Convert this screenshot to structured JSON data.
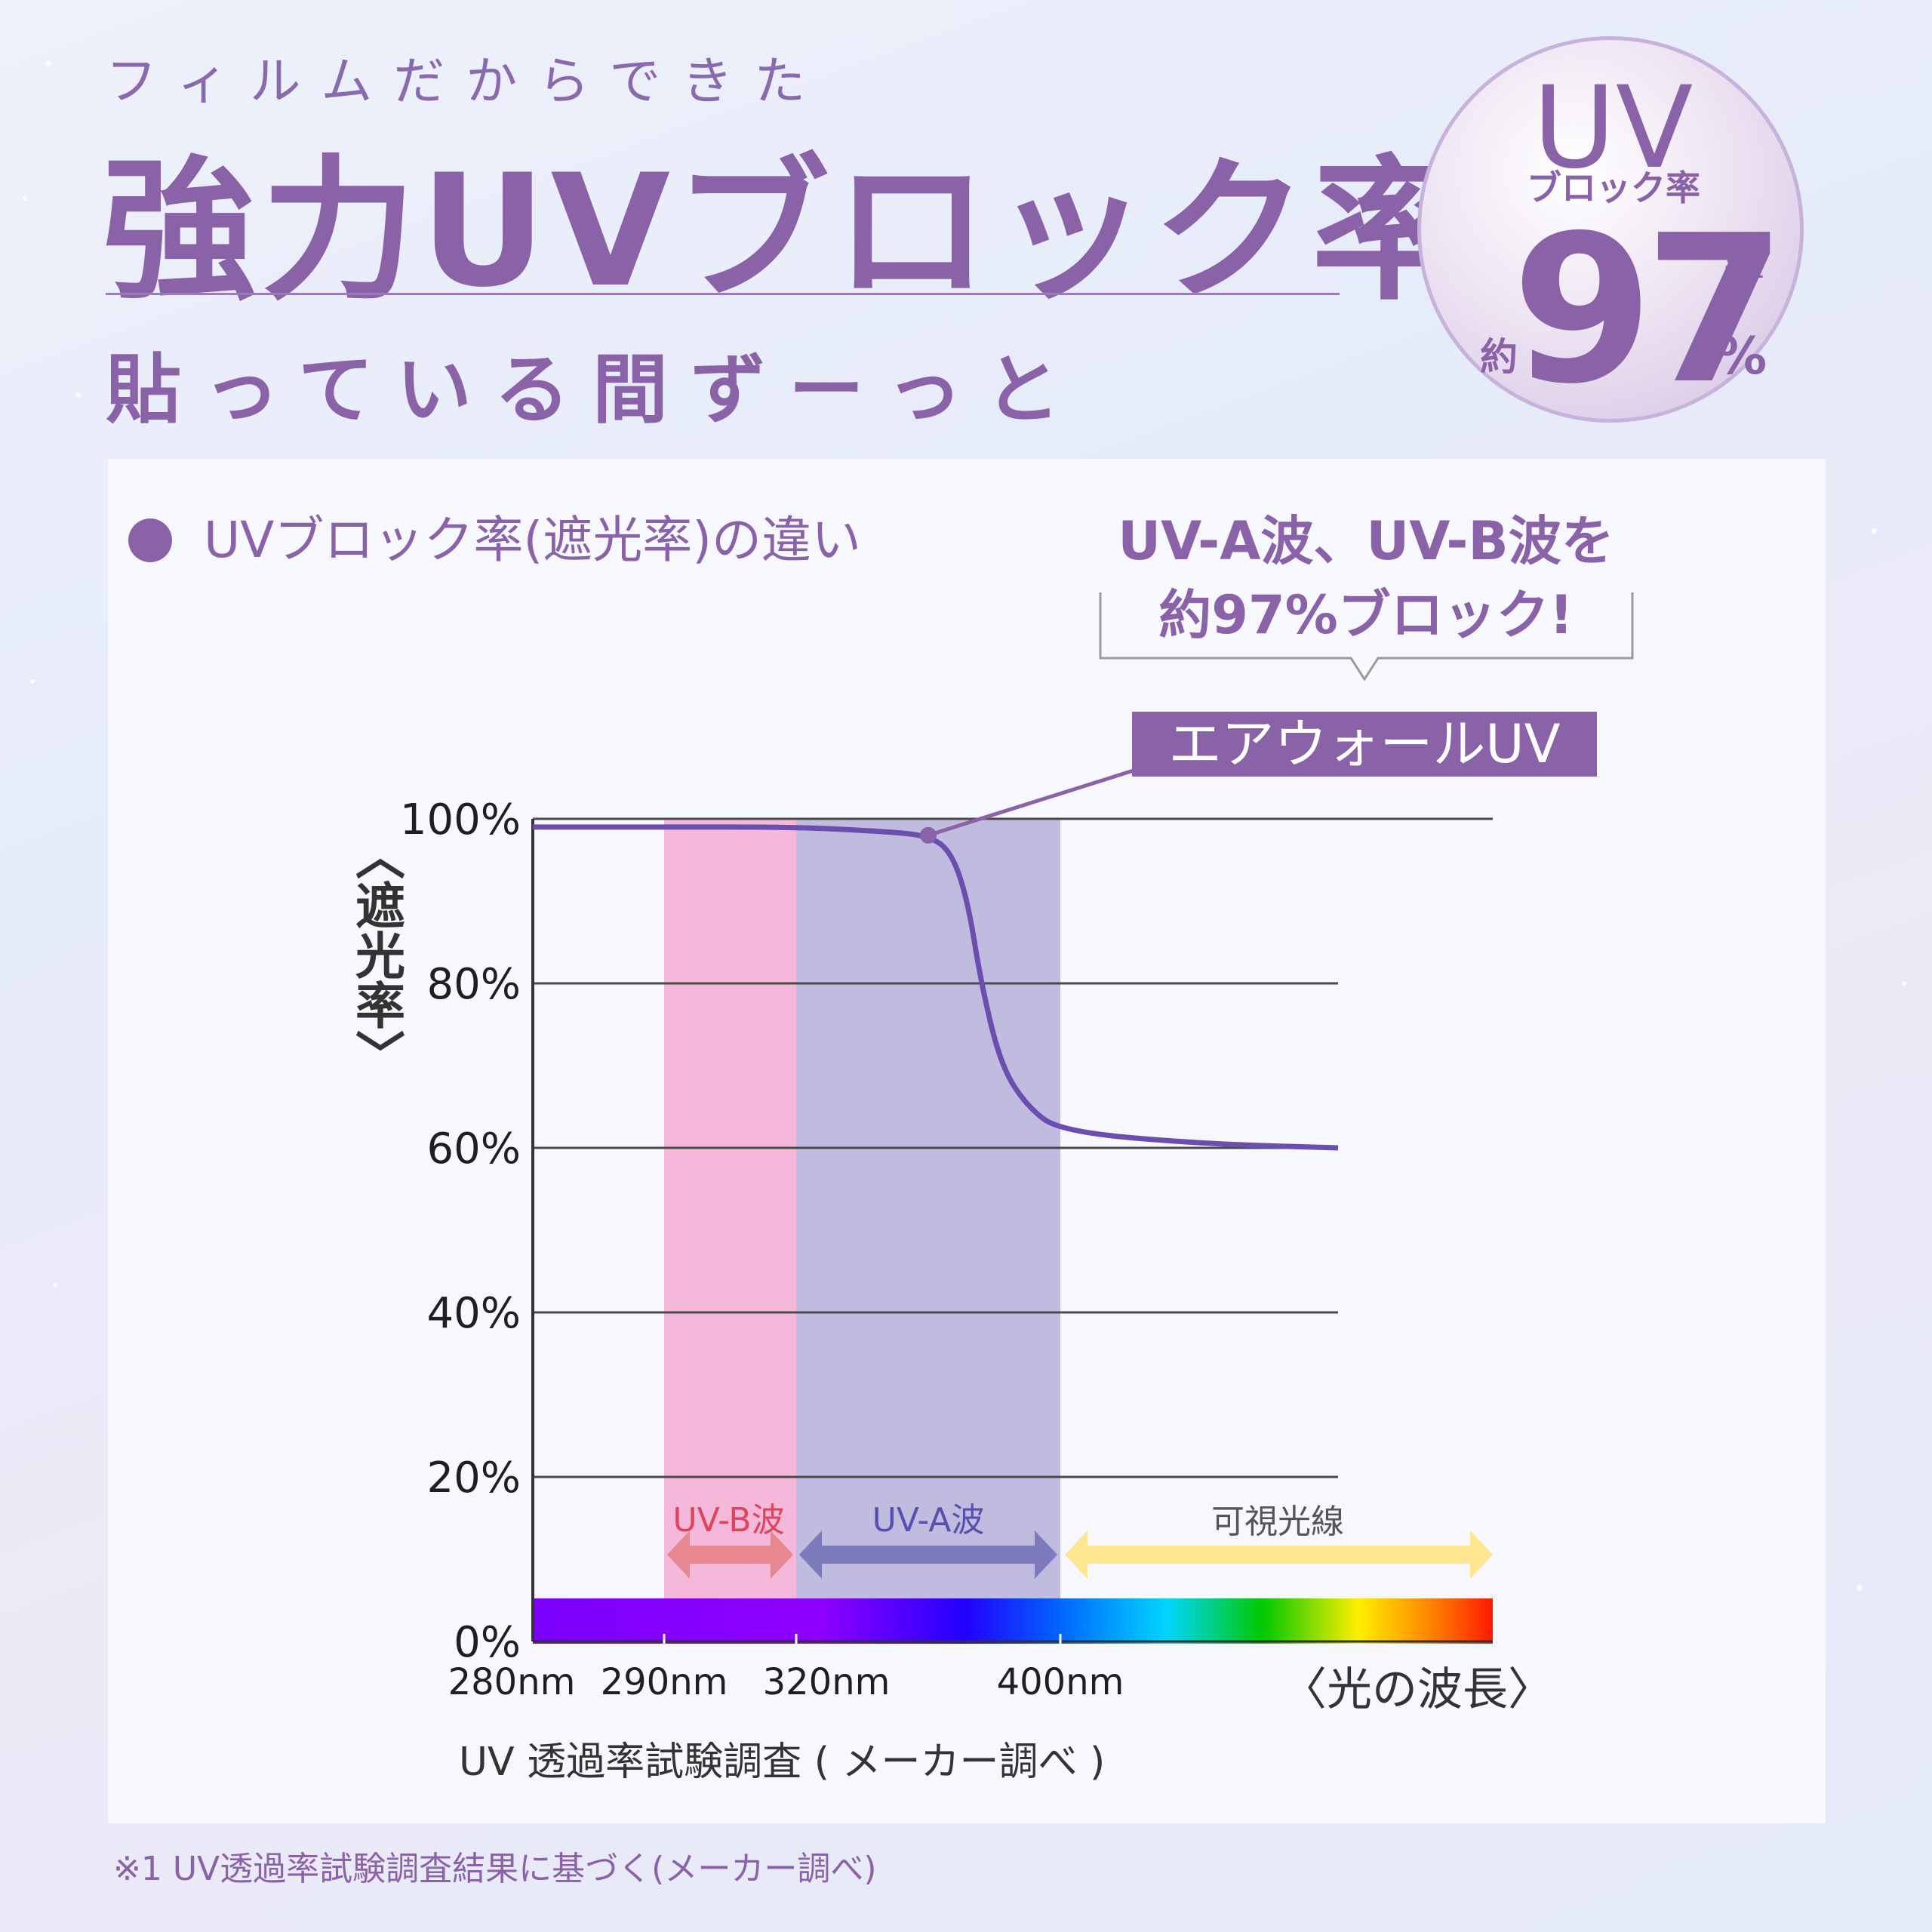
{
  "header": {
    "subtitle_top": "フィルムだからできた",
    "title": "強力UVブロック率",
    "subtitle_bottom": "貼っている間ずーっと"
  },
  "badge": {
    "uv": "UV",
    "block_label": "ブロック率",
    "approx": "約",
    "number": "97",
    "percent": "%",
    "note": "※1"
  },
  "chart_heading": "UVブロック率(遮光率)の違い",
  "callout": {
    "line1": "UV-A波、UV-B波を",
    "line2": "約97%ブロック!"
  },
  "product_label": "エアウォールUV",
  "bands": [
    {
      "label": "UV-B波",
      "color": "#f4b8db",
      "arrow_color": "#e8878e",
      "text_color": "#e0445a"
    },
    {
      "label": "UV-A波",
      "color": "#c0bcdf",
      "arrow_color": "#7e7bbd",
      "text_color": "#5a4fb0"
    },
    {
      "label": "可視光線",
      "color": "none",
      "arrow_color": "#fde68f",
      "text_color": "#555555"
    }
  ],
  "chart_data": {
    "type": "line",
    "title": "UVブロック率(遮光率)の違い",
    "xlabel": "〈光の波長〉",
    "ylabel": "〈遮光率〉",
    "yticks": [
      "100%",
      "80%",
      "60%",
      "40%",
      "20%",
      "0%"
    ],
    "xticks": [
      "280nm",
      "290nm",
      "320nm",
      "400nm"
    ],
    "ylim": [
      0,
      100
    ],
    "series": [
      {
        "name": "エアウォールUV",
        "color": "#6a4fae",
        "points": [
          {
            "x": 280,
            "y": 99
          },
          {
            "x": 290,
            "y": 99
          },
          {
            "x": 320,
            "y": 99
          },
          {
            "x": 345,
            "y": 98.5
          },
          {
            "x": 360,
            "y": 98
          },
          {
            "x": 367,
            "y": 96
          },
          {
            "x": 372,
            "y": 90
          },
          {
            "x": 376,
            "y": 80
          },
          {
            "x": 382,
            "y": 70
          },
          {
            "x": 390,
            "y": 65
          },
          {
            "x": 400,
            "y": 62
          },
          {
            "x": 415,
            "y": 60.5
          },
          {
            "x": 430,
            "y": 60
          }
        ]
      }
    ],
    "grid": true,
    "bands": [
      {
        "name": "UV-B波",
        "from": 290,
        "to": 320
      },
      {
        "name": "UV-A波",
        "from": 320,
        "to": 400
      },
      {
        "name": "可視光線",
        "from": 400,
        "to": null
      }
    ]
  },
  "source_note": "UV 透過率試験調査 ( メーカー調べ )",
  "footnote": "※1 UV透過率試験調査結果に基づく(メーカー調べ)",
  "colors": {
    "accent": "#8a62a8",
    "line": "#6a4fae",
    "grid": "#4a4a4a"
  }
}
